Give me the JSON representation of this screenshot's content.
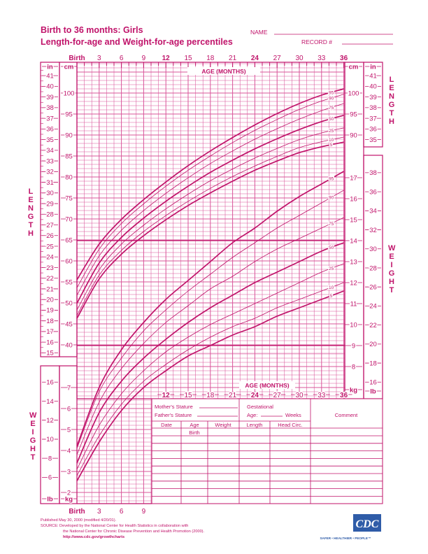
{
  "header": {
    "title_line1": "Birth to 36 months: Girls",
    "title_line2": "Length-for-age and Weight-for-age percentiles",
    "name_label": "NAME",
    "record_label": "RECORD #"
  },
  "colors": {
    "ink": "#c0136a",
    "grid": "#d9559a",
    "cdc_blue": "#2f5ca8"
  },
  "chart_data": {
    "type": "line",
    "x_label": "AGE (MONTHS)",
    "x": [
      0,
      3,
      6,
      9,
      12,
      15,
      18,
      21,
      24,
      27,
      30,
      33,
      36
    ],
    "x_tick_labels_top": [
      "Birth",
      "3",
      "6",
      "9",
      "12",
      "15",
      "18",
      "21",
      "24",
      "27",
      "30",
      "33",
      "36"
    ],
    "x_tick_labels_bottom_left": [
      "Birth",
      "3",
      "6",
      "9"
    ],
    "x_tick_labels_bottom_right": [
      "12",
      "15",
      "18",
      "21",
      "24",
      "27",
      "30",
      "33",
      "36"
    ],
    "xlim": [
      0,
      36
    ],
    "grid": true,
    "length": {
      "label": "LENGTH",
      "unit_cm": "cm",
      "unit_in": "in",
      "ylim_cm": [
        38,
        107
      ],
      "cm_ticks_left": [
        40,
        45,
        50,
        55,
        60,
        65,
        70,
        75,
        80,
        85,
        90,
        95,
        100
      ],
      "in_ticks_left": [
        15,
        16,
        17,
        18,
        19,
        20,
        21,
        22,
        23,
        24,
        25,
        26,
        27,
        28,
        29,
        30,
        31,
        32,
        33,
        34,
        35,
        36,
        37,
        38,
        39,
        40,
        41
      ],
      "cm_ticks_right": [
        90,
        95,
        100
      ],
      "in_ticks_right": [
        35,
        36,
        37,
        38,
        39,
        40,
        41
      ],
      "series": [
        {
          "name": "5",
          "values": [
            46.3,
            55.7,
            61.6,
            66.0,
            69.8,
            73.2,
            76.2,
            79.0,
            81.6,
            83.8,
            85.8,
            87.2,
            88.3
          ]
        },
        {
          "name": "10",
          "values": [
            47.0,
            56.6,
            62.5,
            67.0,
            70.8,
            74.2,
            77.3,
            80.1,
            82.6,
            84.9,
            87.0,
            88.4,
            89.5
          ]
        },
        {
          "name": "25",
          "values": [
            48.3,
            57.9,
            64.0,
            68.5,
            72.4,
            75.9,
            79.1,
            81.9,
            84.5,
            86.8,
            88.9,
            90.5,
            91.7
          ]
        },
        {
          "name": "50",
          "values": [
            49.9,
            59.5,
            65.6,
            70.2,
            74.2,
            77.8,
            81.1,
            84.0,
            86.7,
            89.1,
            91.3,
            93.2,
            94.7
          ]
        },
        {
          "name": "75",
          "values": [
            51.8,
            61.2,
            67.3,
            72.0,
            76.1,
            79.8,
            83.2,
            86.2,
            89.0,
            91.5,
            93.8,
            95.8,
            97.5
          ]
        },
        {
          "name": "90",
          "values": [
            53.6,
            62.8,
            68.9,
            73.6,
            77.8,
            81.6,
            85.0,
            88.2,
            91.1,
            93.7,
            96.1,
            98.1,
            99.7
          ]
        },
        {
          "name": "95",
          "values": [
            55.5,
            64.0,
            69.9,
            74.6,
            78.8,
            82.7,
            86.2,
            89.4,
            92.4,
            95.1,
            97.5,
            99.5,
            101.0
          ]
        }
      ]
    },
    "weight": {
      "label": "WEIGHT",
      "unit_kg": "kg",
      "unit_lb": "lb",
      "ylim_kg": [
        1.5,
        17.5
      ],
      "kg_ticks_left": [
        2,
        3,
        4,
        5,
        6,
        7
      ],
      "lb_ticks_left": [
        6,
        8,
        10,
        12,
        14,
        16
      ],
      "kg_ticks_right": [
        8,
        9,
        10,
        11,
        12,
        13,
        14,
        15,
        16,
        17
      ],
      "lb_ticks_right": [
        16,
        18,
        20,
        22,
        24,
        26,
        28,
        30,
        32,
        34,
        36,
        38
      ],
      "series": [
        {
          "name": "5",
          "values": [
            2.55,
            4.4,
            5.9,
            7.0,
            7.8,
            8.5,
            9.0,
            9.5,
            9.9,
            10.4,
            10.8,
            11.2,
            11.6
          ]
        },
        {
          "name": "10",
          "values": [
            2.8,
            4.7,
            6.2,
            7.3,
            8.1,
            8.8,
            9.4,
            9.9,
            10.3,
            10.8,
            11.2,
            11.6,
            12.0
          ]
        },
        {
          "name": "25",
          "values": [
            3.1,
            5.2,
            6.7,
            7.8,
            8.7,
            9.4,
            10.0,
            10.5,
            11.0,
            11.5,
            12.0,
            12.5,
            12.9
          ]
        },
        {
          "name": "50",
          "values": [
            3.4,
            5.8,
            7.3,
            8.4,
            9.3,
            10.1,
            10.8,
            11.4,
            12.0,
            12.5,
            13.0,
            13.5,
            13.9
          ]
        },
        {
          "name": "75",
          "values": [
            3.8,
            6.3,
            7.9,
            9.1,
            10.1,
            10.9,
            11.7,
            12.3,
            13.0,
            13.6,
            14.1,
            14.6,
            15.1
          ]
        },
        {
          "name": "90",
          "values": [
            4.1,
            6.8,
            8.4,
            9.7,
            10.7,
            11.6,
            12.4,
            13.2,
            13.9,
            14.6,
            15.2,
            15.8,
            16.4
          ]
        },
        {
          "name": "95",
          "values": [
            4.2,
            7.0,
            8.8,
            10.1,
            11.2,
            12.1,
            13.0,
            13.9,
            14.6,
            15.4,
            16.1,
            16.7,
            17.3
          ]
        }
      ]
    }
  },
  "form": {
    "mother_stature": "Mother's Stature",
    "father_stature": "Father's Stature",
    "gestational": "Gestational",
    "gest_age": "Age:",
    "weeks": "Weeks",
    "comment": "Comment",
    "columns": [
      "Date",
      "Age",
      "Weight",
      "Length",
      "Head  Circ."
    ],
    "first_row_age": "Birth"
  },
  "footer": {
    "published": "Published May 30, 2000 (modified 4/20/01).",
    "source1": "SOURCE: Developed by the National Center for Health Statistics in collaboration with",
    "source2": "the National Center for Chronic Disease Prevention and Health Promotion (2000).",
    "url": "http://www.cdc.gov/growthcharts",
    "logo": "CDC",
    "tagline": "SAFER • HEALTHIER • PEOPLE™"
  }
}
